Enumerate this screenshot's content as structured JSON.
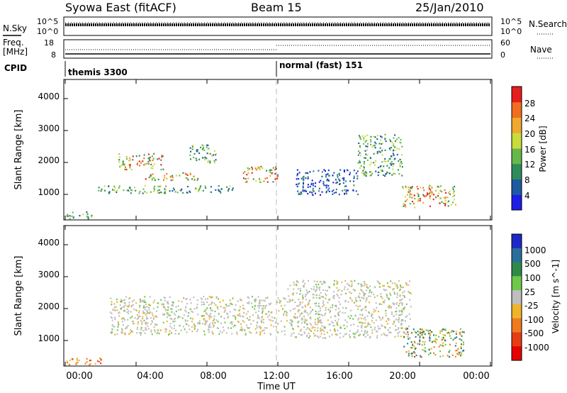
{
  "header": {
    "station": "Syowa East (fitACF)",
    "beam": "Beam 15",
    "date": "25/Jan/2010"
  },
  "noise_panel": {
    "left_label": "N.Sky",
    "right_label": "N.Search",
    "left_ticks": [
      "10^5",
      "10^0"
    ],
    "right_ticks": [
      "10^5",
      "10^0"
    ]
  },
  "freq_panel": {
    "left_label_1": "Freq.",
    "left_label_2": "[MHz]",
    "right_label": "Nave",
    "left_ticks": [
      "18",
      "8"
    ],
    "right_ticks": [
      "60",
      "0"
    ]
  },
  "cpid": {
    "label": "CPID",
    "segments": [
      {
        "name": "themis 3300",
        "start_hour": 0,
        "end_hour": 12
      },
      {
        "name": "normal (fast) 151",
        "start_hour": 12,
        "end_hour": 24
      }
    ]
  },
  "xaxis": {
    "label": "Time UT",
    "ticks": [
      "00:00",
      "04:00",
      "08:00",
      "12:00",
      "16:00",
      "20:00",
      "00:00"
    ]
  },
  "power_panel": {
    "ylabel": "Slant Range [km]",
    "yticks": [
      "1000",
      "2000",
      "3000",
      "4000"
    ],
    "cbar_label": "Power [dB]",
    "cbar_ticks": [
      "4",
      "8",
      "12",
      "16",
      "20",
      "24",
      "28"
    ],
    "cbar_colors": [
      "#1e1ee6",
      "#1e5aa0",
      "#2f8c5a",
      "#66b84a",
      "#c8dc3c",
      "#f0a830",
      "#f06e1e",
      "#e61e1e"
    ]
  },
  "velocity_panel": {
    "ylabel": "Slant Range [km]",
    "yticks": [
      "1000",
      "2000",
      "3000",
      "4000"
    ],
    "cbar_label": "Velocity [m s^-1]",
    "cbar_ticks": [
      "1000",
      "500",
      "100",
      "25",
      "-25",
      "-100",
      "-500",
      "-1000"
    ],
    "cbar_colors": [
      "#1e28c8",
      "#2a6e9a",
      "#2f8a4a",
      "#6ec84a",
      "#bebebe",
      "#f0b428",
      "#f07a1e",
      "#e63c14",
      "#e60000"
    ]
  },
  "chart_data": {
    "type": "heatmap",
    "x_range_hours": [
      0,
      24
    ],
    "y_range_km": [
      200,
      4600
    ],
    "power_regions": [
      {
        "x": [
          1.8,
          9.5
        ],
        "y": [
          1050,
          1300
        ],
        "level": "mid"
      },
      {
        "x": [
          3.0,
          5.5
        ],
        "y": [
          1800,
          2300
        ],
        "level": "high"
      },
      {
        "x": [
          4.5,
          7.5
        ],
        "y": [
          1450,
          1700
        ],
        "level": "high"
      },
      {
        "x": [
          7.0,
          8.5
        ],
        "y": [
          2000,
          2600
        ],
        "level": "mid"
      },
      {
        "x": [
          10.0,
          12.0
        ],
        "y": [
          1400,
          1900
        ],
        "level": "high"
      },
      {
        "x": [
          13.0,
          16.5
        ],
        "y": [
          1000,
          1800
        ],
        "level": "low"
      },
      {
        "x": [
          16.5,
          19.0
        ],
        "y": [
          1600,
          2900
        ],
        "level": "mid"
      },
      {
        "x": [
          19.0,
          22.0
        ],
        "y": [
          600,
          1300
        ],
        "level": "high"
      },
      {
        "x": [
          0.0,
          1.5
        ],
        "y": [
          250,
          500
        ],
        "level": "mid"
      }
    ],
    "velocity_regions": [
      {
        "x": [
          2.5,
          12.5
        ],
        "y": [
          1200,
          2400
        ],
        "kind": "ground"
      },
      {
        "x": [
          12.5,
          19.5
        ],
        "y": [
          1100,
          2900
        ],
        "kind": "ground"
      },
      {
        "x": [
          19.0,
          22.5
        ],
        "y": [
          500,
          1400
        ],
        "kind": "positive"
      },
      {
        "x": [
          0.0,
          2.0
        ],
        "y": [
          250,
          500
        ],
        "kind": "negative"
      }
    ]
  }
}
